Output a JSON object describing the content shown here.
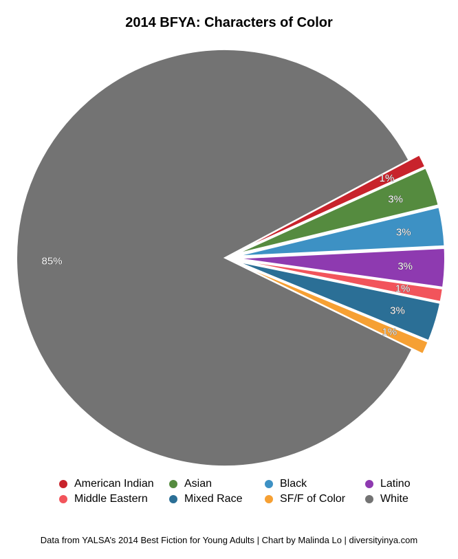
{
  "chart_data": {
    "type": "pie",
    "title": "2014 BFYA: Characters of Color",
    "slices": [
      {
        "name": "American Indian",
        "value": 1,
        "label": "1%",
        "color": "#c8232c"
      },
      {
        "name": "Asian",
        "value": 3,
        "label": "3%",
        "color": "#558b3f"
      },
      {
        "name": "Black",
        "value": 3,
        "label": "3%",
        "color": "#3d91c4"
      },
      {
        "name": "Latino",
        "value": 3,
        "label": "3%",
        "color": "#8e3ab0"
      },
      {
        "name": "Middle Eastern",
        "value": 1,
        "label": "1%",
        "color": "#f2545b"
      },
      {
        "name": "Mixed Race",
        "value": 3,
        "label": "3%",
        "color": "#2b6f96"
      },
      {
        "name": "SF/F of Color",
        "value": 1,
        "label": "1%",
        "color": "#f6a033"
      },
      {
        "name": "White",
        "value": 85,
        "label": "85%",
        "color": "#737373"
      }
    ],
    "legend_position": "bottom",
    "legend_order": [
      "American Indian",
      "Asian",
      "Black",
      "Latino",
      "Middle Eastern",
      "Mixed Race",
      "SF/F of Color",
      "White"
    ]
  },
  "footer": "Data from YALSA’s 2014 Best Fiction for Young Adults | Chart by Malinda Lo | diversityinya.com"
}
